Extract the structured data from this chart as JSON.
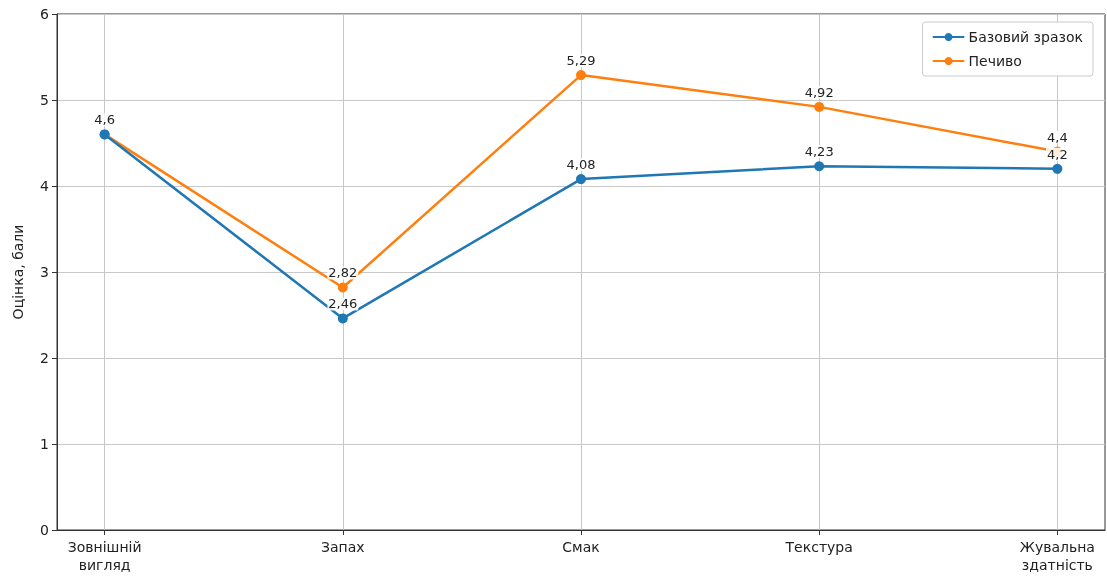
{
  "chart_data": {
    "type": "line",
    "ylabel": "Оцінка, бали",
    "categories": [
      "Зовнішній вигляд",
      "Запах",
      "Смак",
      "Текстура",
      "Жувальна здатність"
    ],
    "series": [
      {
        "name": "Базовий зразок",
        "color": "#1f77b4",
        "values": [
          4.6,
          2.46,
          4.08,
          4.23,
          4.2
        ],
        "value_labels": [
          null,
          "2,46",
          "4,08",
          "4,23",
          "4,2"
        ]
      },
      {
        "name": "Печиво",
        "color": "#ff7f0e",
        "values": [
          4.6,
          2.82,
          5.29,
          4.92,
          4.4
        ],
        "value_labels": [
          "4,6",
          "2,82",
          "5,29",
          "4,92",
          "4,4"
        ]
      }
    ],
    "ylim": [
      0,
      6
    ],
    "yticks": [
      0,
      1,
      2,
      3,
      4,
      5,
      6
    ],
    "grid": true,
    "legend": "top right",
    "marker": "circle",
    "line_style": "solid"
  }
}
